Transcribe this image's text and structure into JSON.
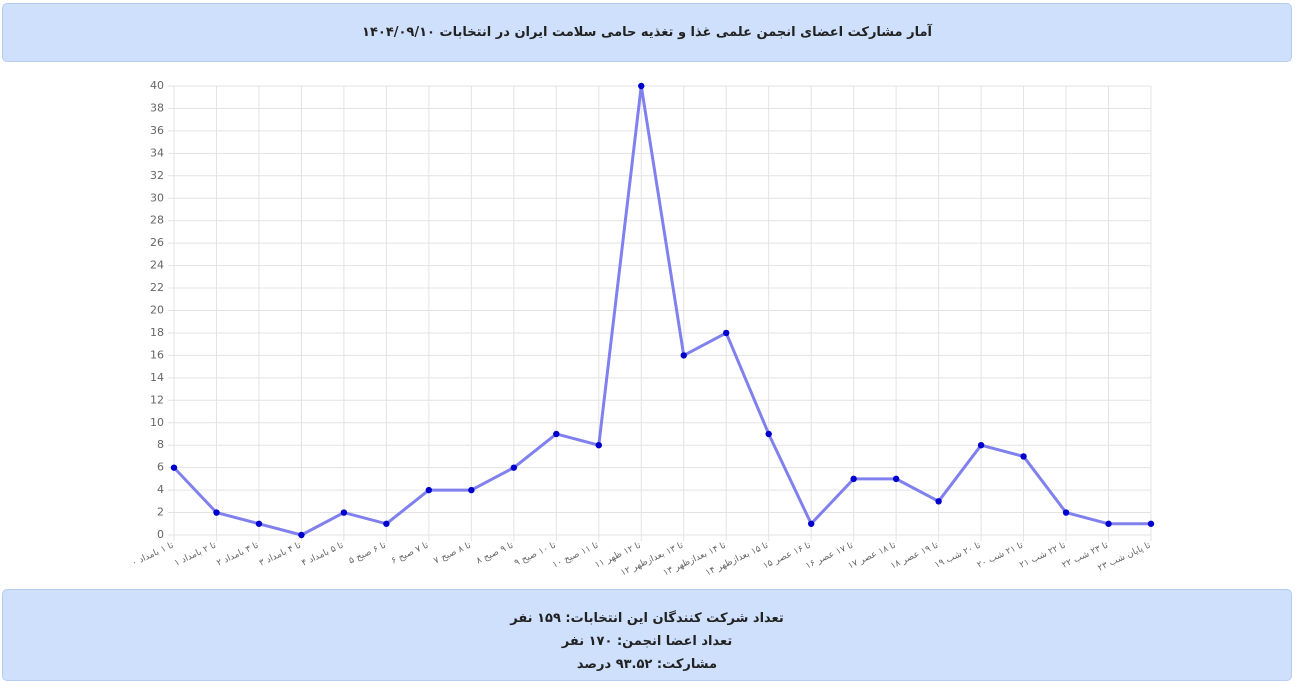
{
  "header": {
    "title": "آمار مشارکت اعضای انجمن علمی غذا و تغذیه حامی سلامت ایران در انتخابات ۱۴۰۴/۰۹/۱۰"
  },
  "chart_data": {
    "type": "line",
    "categories": [
      "۰ تا ۱ بامداد",
      "۱ تا ۲ بامداد",
      "۲ تا ۳ بامداد",
      "۳ تا ۴ بامداد",
      "۴ تا ۵ بامداد",
      "۵ تا ۶ صبح",
      "۶ تا ۷ صبح",
      "۷ تا ۸ صبح",
      "۸ تا ۹ صبح",
      "۹ تا ۱۰ صبح",
      "۱۰ تا ۱۱ صبح",
      "۱۱ تا ۱۲ ظهر",
      "۱۲ تا ۱۳ بعدازظهر",
      "۱۳ تا ۱۴ بعدازظهر",
      "۱۴ تا ۱۵ بعدازظهر",
      "۱۵ تا ۱۶ عصر",
      "۱۶ تا ۱۷ عصر",
      "۱۷ تا ۱۸ عصر",
      "۱۸ تا ۱۹ عصر",
      "۱۹ تا ۲۰ شب",
      "۲۰ تا ۲۱ شب",
      "۲۱ تا ۲۲ شب",
      "۲۲ تا ۲۳ شب",
      "۲۳ تا پایان شب"
    ],
    "values": [
      6,
      2,
      1,
      0,
      2,
      1,
      4,
      4,
      6,
      9,
      8,
      40,
      16,
      18,
      9,
      1,
      5,
      5,
      3,
      8,
      7,
      2,
      1,
      1
    ],
    "color": "#8080ee",
    "marker_color": "#0000cc",
    "ylim": [
      0,
      40
    ],
    "yticks": [
      0,
      2,
      4,
      6,
      8,
      10,
      12,
      14,
      16,
      18,
      20,
      22,
      24,
      26,
      28,
      30,
      32,
      34,
      36,
      38,
      40
    ],
    "grid": true
  },
  "footer": {
    "lines": [
      "تعداد شرکت کنندگان این انتخابات: ۱۵۹ نفر",
      "تعداد اعضا انجمن: ۱۷۰ نفر",
      "مشارکت: ۹۳.۵۲ درصد"
    ]
  }
}
